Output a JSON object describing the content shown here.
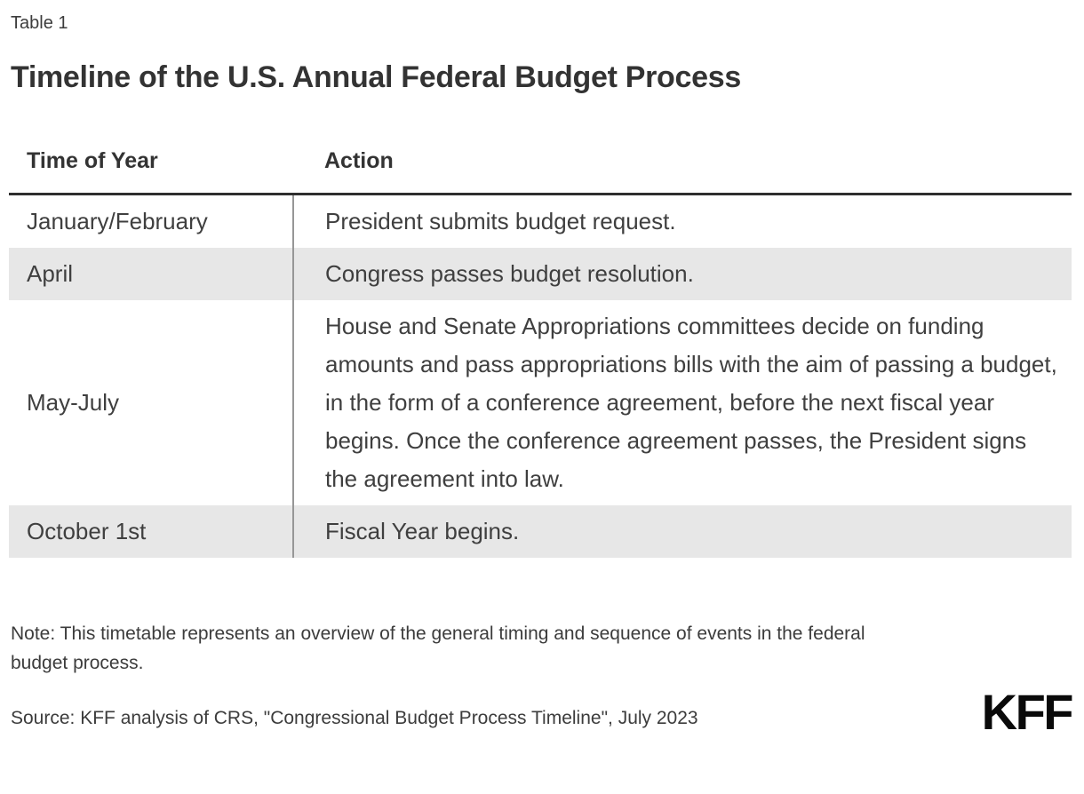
{
  "chart_data": {
    "type": "table",
    "figure_label": "Table 1",
    "title": "Timeline of the U.S. Annual Federal Budget Process",
    "columns": [
      "Time of Year",
      "Action"
    ],
    "rows": [
      [
        "January/February",
        "President submits budget request."
      ],
      [
        "April",
        "Congress passes budget resolution."
      ],
      [
        "May-July",
        "House and Senate Appropriations committees decide on funding amounts and pass appropriations bills with the aim of passing a budget, in the form of a conference agreement, before the next fiscal year begins. Once the conference agreement passes, the President signs the agreement into law."
      ],
      [
        "October 1st",
        "Fiscal Year begins."
      ]
    ],
    "note": "Note: This timetable represents an overview of the general timing and sequence of events in the federal budget process.",
    "source": "Source: KFF analysis of CRS, \"Congressional Budget Process Timeline\", July 2023",
    "layout_hints": {
      "shaded_row_indices": [
        1,
        3
      ],
      "grid": "header rule + column divider only, no outer border"
    }
  },
  "branding": {
    "logo_text": "KFF"
  },
  "colors": {
    "shaded_row": "#e7e7e7",
    "header_rule": "#2e2e2e",
    "column_divider": "#979797",
    "text": "#3f3f3f",
    "heading_text": "#333333",
    "logo_color": "#0a0a0a"
  }
}
